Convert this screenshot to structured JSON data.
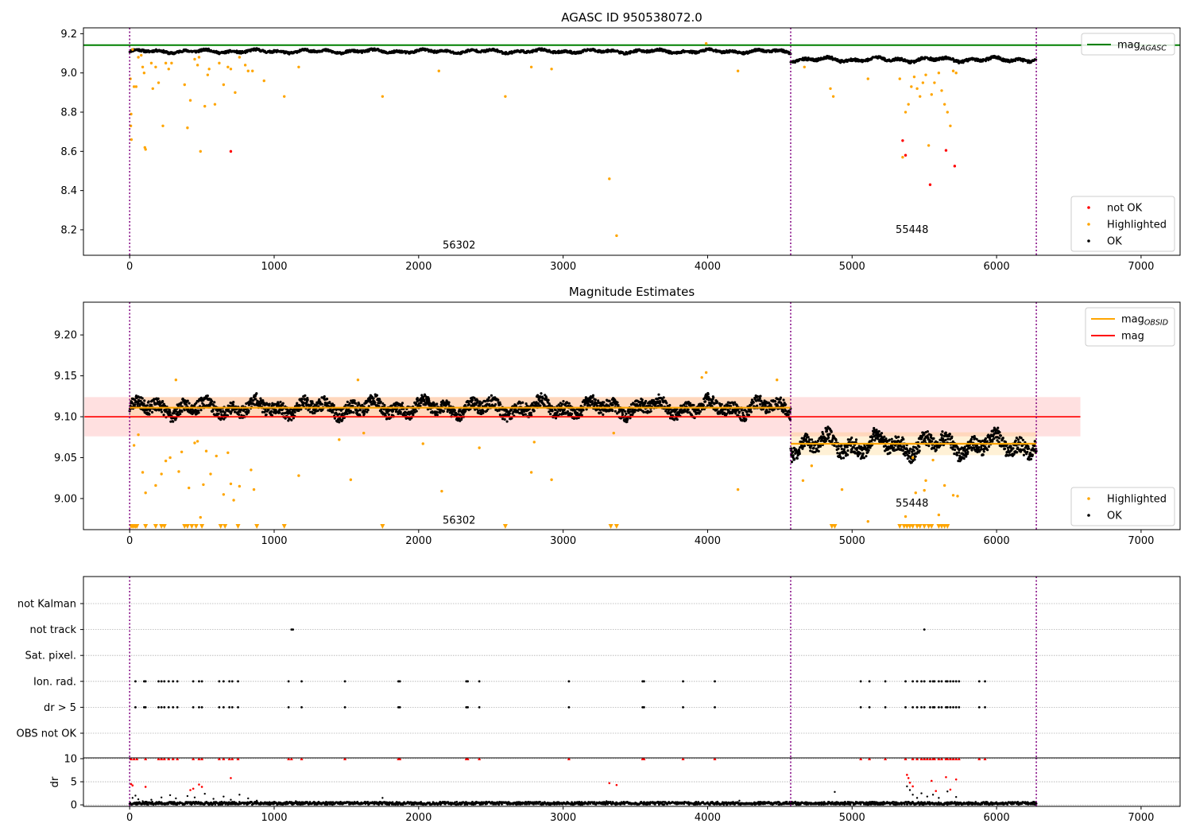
{
  "figure": {
    "title": "AGASC ID 950538072.0",
    "x_ticks": [
      0,
      1000,
      2000,
      3000,
      4000,
      5000,
      6000,
      7000
    ],
    "xlim": [
      -320,
      7270
    ],
    "obsid_boundaries": [
      0,
      4575,
      6275
    ],
    "obsid_labels": [
      {
        "text": "56302",
        "x": 2280
      },
      {
        "text": "55448",
        "x": 5415
      }
    ],
    "colors": {
      "ok": "#000000",
      "highlighted": "#ffa500",
      "not_ok": "#ff0000",
      "mag_agasc": "#008000",
      "mag": "#ff0000",
      "mag_obsid": "#ffa500",
      "boundary": "#800080"
    }
  },
  "chart_data": [
    {
      "type": "scatter",
      "subtitle": "",
      "ylim": [
        8.07,
        9.23
      ],
      "y_ticks": [
        8.2,
        8.4,
        8.6,
        8.8,
        9.0,
        9.2
      ],
      "label_y": [
        8.12,
        8.2
      ],
      "mag_agasc": 9.142,
      "legend_top": [
        {
          "label": "mag",
          "sub": "AGASC",
          "color": "#008000"
        }
      ],
      "legend_bottom": [
        {
          "label": "not OK",
          "color": "#ff0000"
        },
        {
          "label": "Highlighted",
          "color": "#ffa500"
        },
        {
          "label": "OK",
          "color": "#000000"
        }
      ],
      "ok_segments": [
        {
          "x0": 0,
          "x1": 4575,
          "mean": 9.11,
          "amp": 0.01,
          "noise": 0.006,
          "step": 3
        },
        {
          "x0": 4575,
          "x1": 6275,
          "mean": 9.068,
          "amp": 0.013,
          "noise": 0.007,
          "step": 3
        }
      ],
      "highlighted": [
        [
          5,
          8.97
        ],
        [
          8,
          8.73
        ],
        [
          10,
          8.79
        ],
        [
          12,
          8.66
        ],
        [
          20,
          9.12
        ],
        [
          30,
          8.93
        ],
        [
          45,
          8.93
        ],
        [
          60,
          9.08
        ],
        [
          80,
          9.09
        ],
        [
          90,
          9.03
        ],
        [
          100,
          9.0
        ],
        [
          105,
          8.62
        ],
        [
          110,
          8.61
        ],
        [
          150,
          9.05
        ],
        [
          160,
          8.92
        ],
        [
          180,
          9.03
        ],
        [
          200,
          8.95
        ],
        [
          230,
          8.73
        ],
        [
          250,
          9.05
        ],
        [
          270,
          9.02
        ],
        [
          290,
          9.05
        ],
        [
          380,
          8.94
        ],
        [
          400,
          8.72
        ],
        [
          420,
          8.86
        ],
        [
          450,
          9.07
        ],
        [
          470,
          9.04
        ],
        [
          480,
          9.08
        ],
        [
          490,
          8.6
        ],
        [
          520,
          8.83
        ],
        [
          540,
          8.99
        ],
        [
          550,
          9.02
        ],
        [
          590,
          8.84
        ],
        [
          620,
          9.05
        ],
        [
          650,
          8.94
        ],
        [
          680,
          9.03
        ],
        [
          700,
          9.02
        ],
        [
          730,
          8.9
        ],
        [
          760,
          9.08
        ],
        [
          800,
          9.04
        ],
        [
          820,
          9.01
        ],
        [
          850,
          9.01
        ],
        [
          930,
          8.96
        ],
        [
          1070,
          8.88
        ],
        [
          1170,
          9.03
        ],
        [
          1750,
          8.88
        ],
        [
          2140,
          9.01
        ],
        [
          2600,
          8.88
        ],
        [
          2780,
          9.03
        ],
        [
          2920,
          9.02
        ],
        [
          3320,
          8.46
        ],
        [
          3370,
          8.17
        ],
        [
          3990,
          9.15
        ],
        [
          4210,
          9.01
        ],
        [
          4670,
          9.03
        ],
        [
          4850,
          8.92
        ],
        [
          4870,
          8.88
        ],
        [
          5110,
          8.97
        ],
        [
          5330,
          8.97
        ],
        [
          5350,
          8.57
        ],
        [
          5370,
          8.8
        ],
        [
          5390,
          8.84
        ],
        [
          5410,
          8.93
        ],
        [
          5430,
          8.98
        ],
        [
          5450,
          8.92
        ],
        [
          5470,
          8.88
        ],
        [
          5490,
          8.95
        ],
        [
          5510,
          8.99
        ],
        [
          5530,
          8.63
        ],
        [
          5550,
          8.89
        ],
        [
          5570,
          8.95
        ],
        [
          5600,
          9.0
        ],
        [
          5620,
          8.91
        ],
        [
          5640,
          8.84
        ],
        [
          5660,
          8.8
        ],
        [
          5680,
          8.73
        ],
        [
          5700,
          9.01
        ],
        [
          5720,
          9.0
        ]
      ],
      "not_ok": [
        [
          700,
          8.6
        ],
        [
          5350,
          8.655
        ],
        [
          5370,
          8.58
        ],
        [
          5540,
          8.43
        ],
        [
          5650,
          8.605
        ],
        [
          5710,
          8.525
        ]
      ]
    },
    {
      "type": "scatter",
      "subtitle": "Magnitude Estimates",
      "ylim": [
        8.962,
        9.24
      ],
      "y_ticks": [
        9.0,
        9.05,
        9.1,
        9.15,
        9.2
      ],
      "label_y": [
        8.973,
        8.994
      ],
      "mag": 9.1,
      "mag_band": [
        9.076,
        9.124
      ],
      "mag_band_x": [
        0,
        6580
      ],
      "obsid_mags": [
        {
          "x0": 0,
          "x1": 4575,
          "mag": 9.111,
          "band": [
            9.098,
            9.124
          ]
        },
        {
          "x0": 4575,
          "x1": 6275,
          "mag": 9.067,
          "band": [
            9.053,
            9.081
          ]
        }
      ],
      "legend_top": [
        {
          "label": "mag",
          "sub": "OBSID",
          "color": "#ffa500"
        },
        {
          "label": "mag",
          "sub": "",
          "color": "#ff0000"
        }
      ],
      "legend_bottom": [
        {
          "label": "Highlighted",
          "color": "#ffa500"
        },
        {
          "label": "OK",
          "color": "#000000"
        }
      ],
      "ok_segments": [
        {
          "x0": 0,
          "x1": 4575,
          "mean": 9.111,
          "amp": 0.01,
          "noise": 0.008,
          "step": 2
        },
        {
          "x0": 4575,
          "x1": 6275,
          "mean": 9.066,
          "amp": 0.014,
          "noise": 0.009,
          "step": 2
        }
      ],
      "highlighted": [
        [
          30,
          9.065
        ],
        [
          60,
          9.078
        ],
        [
          90,
          9.032
        ],
        [
          110,
          9.007
        ],
        [
          180,
          9.016
        ],
        [
          220,
          9.03
        ],
        [
          250,
          9.046
        ],
        [
          280,
          9.05
        ],
        [
          320,
          9.145
        ],
        [
          340,
          9.033
        ],
        [
          360,
          9.057
        ],
        [
          410,
          9.013
        ],
        [
          450,
          9.068
        ],
        [
          470,
          9.07
        ],
        [
          490,
          8.977
        ],
        [
          510,
          9.017
        ],
        [
          530,
          9.058
        ],
        [
          560,
          9.03
        ],
        [
          600,
          9.052
        ],
        [
          650,
          9.005
        ],
        [
          680,
          9.056
        ],
        [
          700,
          9.018
        ],
        [
          720,
          8.998
        ],
        [
          760,
          9.015
        ],
        [
          840,
          9.035
        ],
        [
          860,
          9.011
        ],
        [
          1170,
          9.028
        ],
        [
          1450,
          9.072
        ],
        [
          1530,
          9.023
        ],
        [
          1580,
          9.145
        ],
        [
          1620,
          9.08
        ],
        [
          2030,
          9.067
        ],
        [
          2160,
          9.009
        ],
        [
          2420,
          9.062
        ],
        [
          2780,
          9.032
        ],
        [
          2800,
          9.069
        ],
        [
          2920,
          9.023
        ],
        [
          3350,
          9.08
        ],
        [
          3960,
          9.148
        ],
        [
          3990,
          9.154
        ],
        [
          4210,
          9.011
        ],
        [
          4480,
          9.145
        ],
        [
          4660,
          9.022
        ],
        [
          4720,
          9.04
        ],
        [
          4930,
          9.011
        ],
        [
          5110,
          8.972
        ],
        [
          5370,
          8.978
        ],
        [
          5420,
          9.05
        ],
        [
          5440,
          9.007
        ],
        [
          5500,
          9.01
        ],
        [
          5510,
          9.022
        ],
        [
          5560,
          9.047
        ],
        [
          5600,
          8.98
        ],
        [
          5640,
          9.016
        ],
        [
          5700,
          9.004
        ],
        [
          5730,
          9.003
        ]
      ],
      "low_markers": [
        10,
        20,
        30,
        40,
        50,
        110,
        180,
        220,
        240,
        380,
        400,
        430,
        460,
        500,
        630,
        660,
        750,
        880,
        1070,
        1750,
        2600,
        3330,
        3370,
        4860,
        4880,
        5330,
        5360,
        5380,
        5400,
        5420,
        5450,
        5470,
        5500,
        5530,
        5550,
        5600,
        5620,
        5640,
        5660
      ]
    },
    {
      "type": "scatter",
      "subtitle": "",
      "flag_rows": [
        "not Kalman",
        "not track",
        "Sat. pixel.",
        "Ion. rad.",
        "dr > 5",
        "OBS not OK"
      ],
      "flags": {
        "not track": [
          1120,
          1130,
          5500
        ],
        "Ion. rad.": [
          40,
          100,
          110,
          200,
          220,
          240,
          270,
          300,
          330,
          440,
          480,
          500,
          620,
          650,
          690,
          710,
          750,
          1100,
          1190,
          1490,
          1860,
          1870,
          2330,
          2340,
          2420,
          3040,
          3550,
          3560,
          3830,
          4050,
          5060,
          5120,
          5230,
          5370,
          5420,
          5450,
          5480,
          5500,
          5540,
          5560,
          5570,
          5600,
          5620,
          5650,
          5660,
          5680,
          5700,
          5720,
          5740,
          5880,
          5920
        ],
        "dr > 5": [
          40,
          100,
          110,
          200,
          220,
          240,
          270,
          300,
          330,
          440,
          480,
          500,
          620,
          650,
          690,
          710,
          750,
          1100,
          1190,
          1490,
          1860,
          1870,
          2330,
          2340,
          2420,
          3040,
          3550,
          3560,
          3830,
          4050,
          5060,
          5120,
          5230,
          5370,
          5420,
          5450,
          5480,
          5500,
          5540,
          5560,
          5570,
          5600,
          5620,
          5650,
          5660,
          5680,
          5700,
          5720,
          5740,
          5880,
          5920
        ]
      },
      "dr": {
        "ylabel": "dr",
        "ylim": [
          -0.5,
          10
        ],
        "y_ticks": [
          0,
          5,
          10
        ],
        "clip": 10,
        "ok_level": 0.35,
        "ok_noise": 0.3,
        "ok_step": 4,
        "scatter_small": [
          [
            20,
            1.5
          ],
          [
            40,
            2
          ],
          [
            60,
            1.2
          ],
          [
            90,
            0.8
          ],
          [
            150,
            1.1
          ],
          [
            220,
            1.6
          ],
          [
            280,
            2.1
          ],
          [
            320,
            1.4
          ],
          [
            400,
            1.9
          ],
          [
            450,
            1.6
          ],
          [
            520,
            2.4
          ],
          [
            580,
            1.3
          ],
          [
            650,
            1.8
          ],
          [
            700,
            1.1
          ],
          [
            760,
            2.2
          ],
          [
            820,
            1.4
          ],
          [
            880,
            0.9
          ],
          [
            1150,
            0.8
          ],
          [
            1750,
            1.5
          ],
          [
            2400,
            0.7
          ],
          [
            3300,
            0.8
          ],
          [
            4220,
            0.9
          ],
          [
            4880,
            2.8
          ],
          [
            5380,
            4
          ],
          [
            5400,
            3.2
          ],
          [
            5420,
            2.2
          ],
          [
            5450,
            1.5
          ],
          [
            5480,
            2.5
          ],
          [
            5520,
            1.8
          ],
          [
            5560,
            2.2
          ],
          [
            5600,
            1.5
          ],
          [
            5660,
            2.9
          ],
          [
            5720,
            1.7
          ]
        ],
        "red_points": [
          [
            10,
            4.5
          ],
          [
            20,
            4.2
          ],
          [
            110,
            3.9
          ],
          [
            420,
            3.2
          ],
          [
            440,
            3.5
          ],
          [
            480,
            4.4
          ],
          [
            500,
            3.9
          ],
          [
            700,
            5.8
          ],
          [
            3320,
            4.7
          ],
          [
            3370,
            4.3
          ],
          [
            5380,
            6.5
          ],
          [
            5390,
            5.8
          ],
          [
            5400,
            4.8
          ],
          [
            5420,
            4
          ],
          [
            5550,
            5.2
          ],
          [
            5580,
            3
          ],
          [
            5650,
            6
          ],
          [
            5680,
            3.3
          ],
          [
            5720,
            5.5
          ]
        ],
        "clipped": [
          10,
          30,
          50,
          110,
          200,
          220,
          240,
          270,
          300,
          330,
          440,
          480,
          500,
          620,
          650,
          690,
          710,
          750,
          1100,
          1120,
          1190,
          1490,
          1860,
          1870,
          2330,
          2340,
          2420,
          3040,
          3550,
          3560,
          3830,
          4050,
          5060,
          5120,
          5230,
          5370,
          5420,
          5450,
          5480,
          5500,
          5520,
          5540,
          5560,
          5570,
          5600,
          5620,
          5650,
          5660,
          5680,
          5700,
          5720,
          5740,
          5880,
          5920
        ]
      }
    }
  ]
}
